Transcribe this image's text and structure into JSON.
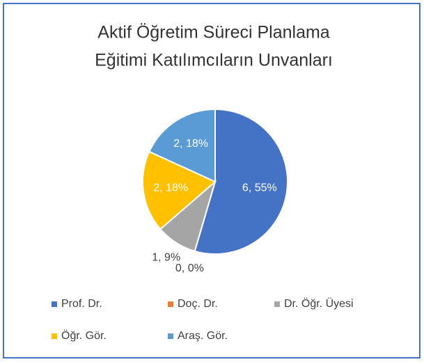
{
  "chart_data": {
    "type": "pie",
    "title": [
      "Aktif Öğretim Süreci Planlama",
      "Eğitimi Katılımcıların Unvanları"
    ],
    "categories": [
      "Prof. Dr.",
      "Doç. Dr.",
      "Dr. Öğr. Üyesi",
      "Öğr. Gör.",
      "Araş. Gör."
    ],
    "values": [
      6,
      0,
      1,
      2,
      2
    ],
    "value_labels": [
      "6, 55%",
      "0, 0%",
      "1, 9%",
      "2, 18%",
      "2, 18%"
    ],
    "colors": [
      "#4472c4",
      "#ed7d31",
      "#a5a5a5",
      "#ffc000",
      "#5b9bd5"
    ],
    "legend": "bottom"
  }
}
